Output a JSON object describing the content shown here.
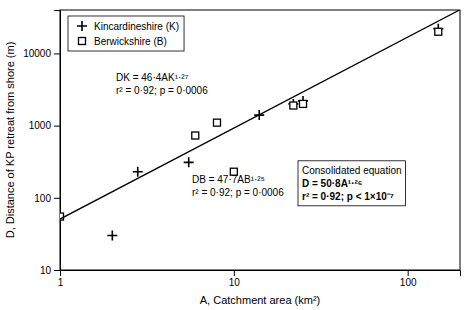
{
  "chart_data": {
    "type": "scatter",
    "xlabel": "A, Catchment area (km²)",
    "ylabel": "D, Distance of KP retreat from shore (m)",
    "log": true,
    "xlim": [
      1,
      200
    ],
    "ylim": [
      10,
      40000
    ],
    "xticks": [
      1,
      10,
      100
    ],
    "yticks": [
      10,
      100,
      1000,
      10000
    ],
    "grid": false,
    "legend": "upper-left",
    "series": [
      {
        "name": "Kincardineshire (K)",
        "type": "scatter",
        "marker": "plus",
        "color": "#000000",
        "x": [
          2.0,
          2.8,
          5.5,
          14.0,
          22.0,
          25.0,
          150.0
        ],
        "values": [
          30,
          230,
          310,
          1400,
          2000,
          2200,
          22000
        ]
      },
      {
        "name": "Berwickshire (B)",
        "type": "scatter",
        "marker": "square",
        "color": "#000000",
        "x": [
          1.0,
          6.0,
          8.0,
          10.0,
          22.0,
          25.0,
          150.0
        ],
        "values": [
          55,
          730,
          1100,
          230,
          1900,
          2000,
          20000
        ]
      },
      {
        "type": "line",
        "line_style": "solid",
        "color": "#000000",
        "x": [
          1,
          198.87
        ],
        "values": [
          50.8,
          40000
        ]
      }
    ],
    "annotations": [
      [
        "DK = 46·4AK¹·²⁷",
        "r² = 0·92; p = 0·0006"
      ],
      [
        "DB = 47·7AB¹·²⁵",
        "r² = 0·92; p = 0·0006"
      ],
      [
        "Consolidated equation",
        "D = 50·8A¹·²⁶",
        "r² = 0·92; p < 1×10⁻⁷"
      ]
    ]
  }
}
